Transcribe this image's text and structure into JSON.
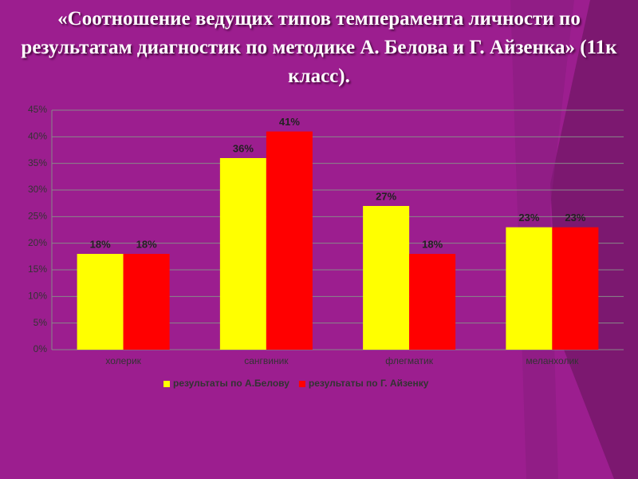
{
  "chart_data": {
    "type": "bar",
    "title": "«Соотношение ведущих типов темперамента личности по результатам диагностик  по методике А. Белова и Г. Айзенка» (11к класс).",
    "categories": [
      "холерик",
      "сангвиник",
      "флегматик",
      "меланхолик"
    ],
    "series": [
      {
        "name": "результаты по А.Белову",
        "color": "#ffff00",
        "values": [
          18,
          36,
          27,
          23
        ],
        "value_labels": [
          "18%",
          "36%",
          "27%",
          "23%"
        ]
      },
      {
        "name": "результаты по Г. Айзенку",
        "color": "#ff0000",
        "values": [
          18,
          41,
          18,
          23
        ],
        "value_labels": [
          "18%",
          "41%",
          "18%",
          "23%"
        ]
      }
    ],
    "ylim": [
      0,
      45
    ],
    "yticks": [
      {
        "value": 0,
        "label": "0%"
      },
      {
        "value": 5,
        "label": "5%"
      },
      {
        "value": 10,
        "label": "10%"
      },
      {
        "value": 15,
        "label": "15%"
      },
      {
        "value": 20,
        "label": "20%"
      },
      {
        "value": 25,
        "label": "25%"
      },
      {
        "value": 30,
        "label": "30%"
      },
      {
        "value": 35,
        "label": "35%"
      },
      {
        "value": 40,
        "label": "40%"
      },
      {
        "value": 45,
        "label": "45%"
      }
    ],
    "grid": true,
    "legend": "bottom"
  }
}
